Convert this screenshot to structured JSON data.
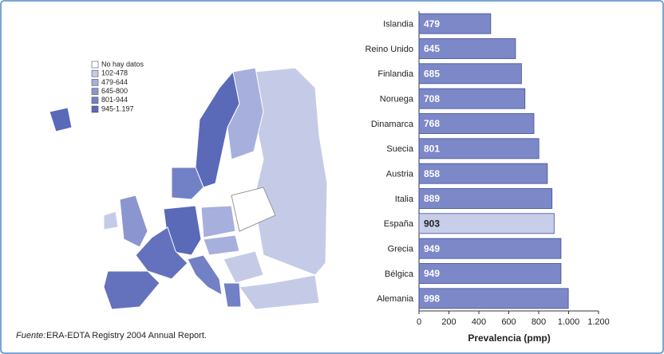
{
  "chart_data": {
    "type": "bar",
    "orientation": "horizontal",
    "categories": [
      "Islandia",
      "Reino Unido",
      "Finlandia",
      "Noruega",
      "Dinamarca",
      "Suecia",
      "Austria",
      "Italia",
      "España",
      "Grecia",
      "Bélgica",
      "Alemania"
    ],
    "values": [
      479,
      645,
      685,
      708,
      768,
      801,
      858,
      889,
      903,
      949,
      949,
      998
    ],
    "colors": [
      "#7c88c8",
      "#7c88c8",
      "#7c88c8",
      "#7c88c8",
      "#7c88c8",
      "#7c88c8",
      "#7c88c8",
      "#7c88c8",
      "#c8cdea",
      "#7c88c8",
      "#7c88c8",
      "#7c88c8"
    ],
    "xlabel": "Prevalencia (pmp)",
    "xlim": [
      0,
      1200
    ],
    "xticks": [
      0,
      200,
      400,
      600,
      800,
      {
        "value": 1000,
        "label": "1.000"
      },
      {
        "value": 1200,
        "label": "1.200"
      }
    ]
  },
  "map_legend": [
    {
      "label": "No hay datos",
      "color": "#ffffff"
    },
    {
      "label": "102-478",
      "color": "#c5cbe7"
    },
    {
      "label": "479-644",
      "color": "#a7afdc"
    },
    {
      "label": "645-800",
      "color": "#8b96d0"
    },
    {
      "label": "801-944",
      "color": "#7280c6"
    },
    {
      "label": "945-1.197",
      "color": "#5a69b8"
    }
  ],
  "source": {
    "label": "Fuente:",
    "text": "ERA-EDTA Registry 2004 Annual Report."
  }
}
